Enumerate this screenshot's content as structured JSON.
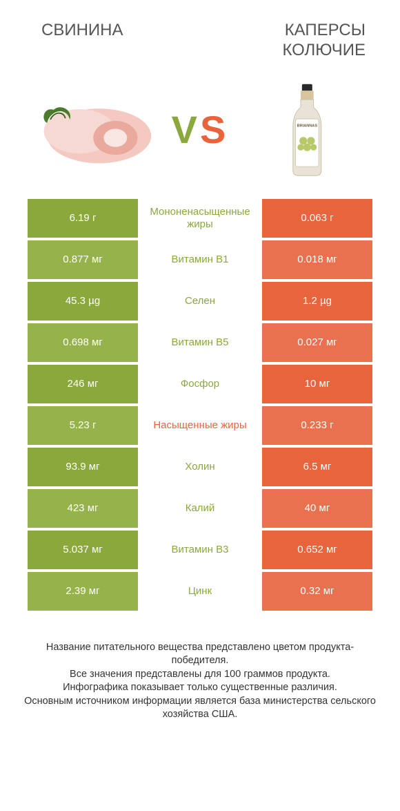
{
  "header": {
    "left_title": "СВИНИНА",
    "right_title": "КАПЕРСЫ КОЛЮЧИЕ"
  },
  "vs": {
    "v": "V",
    "s": "S"
  },
  "colors": {
    "green": "#8aa83c",
    "green_alt": "#95b34a",
    "orange": "#e8643c",
    "orange_alt": "#ea7150",
    "label_green": "#8aa83c",
    "label_orange": "#e8643c"
  },
  "rows": [
    {
      "left": "6.19 г",
      "label": "Мононенасыщенные жиры",
      "right": "0.063 г",
      "winner": "green",
      "left_shade": "a",
      "right_shade": "a"
    },
    {
      "left": "0.877 мг",
      "label": "Витамин B1",
      "right": "0.018 мг",
      "winner": "green",
      "left_shade": "b",
      "right_shade": "b"
    },
    {
      "left": "45.3 µg",
      "label": "Селен",
      "right": "1.2 µg",
      "winner": "green",
      "left_shade": "a",
      "right_shade": "a"
    },
    {
      "left": "0.698 мг",
      "label": "Витамин B5",
      "right": "0.027 мг",
      "winner": "green",
      "left_shade": "b",
      "right_shade": "b"
    },
    {
      "left": "246 мг",
      "label": "Фосфор",
      "right": "10 мг",
      "winner": "green",
      "left_shade": "a",
      "right_shade": "a"
    },
    {
      "left": "5.23 г",
      "label": "Насыщенные жиры",
      "right": "0.233 г",
      "winner": "orange",
      "left_shade": "b",
      "right_shade": "b"
    },
    {
      "left": "93.9 мг",
      "label": "Холин",
      "right": "6.5 мг",
      "winner": "green",
      "left_shade": "a",
      "right_shade": "a"
    },
    {
      "left": "423 мг",
      "label": "Калий",
      "right": "40 мг",
      "winner": "green",
      "left_shade": "b",
      "right_shade": "b"
    },
    {
      "left": "5.037 мг",
      "label": "Витамин B3",
      "right": "0.652 мг",
      "winner": "green",
      "left_shade": "a",
      "right_shade": "a"
    },
    {
      "left": "2.39 мг",
      "label": "Цинк",
      "right": "0.32 мг",
      "winner": "green",
      "left_shade": "b",
      "right_shade": "b"
    }
  ],
  "footer": {
    "line1": "Название питательного вещества представлено цветом продукта-победителя.",
    "line2": "Все значения представлены для 100 граммов продукта.",
    "line3": "Инфографика показывает только существенные различия.",
    "line4": "Основным источником информации является база министерства сельского хозяйства США."
  }
}
